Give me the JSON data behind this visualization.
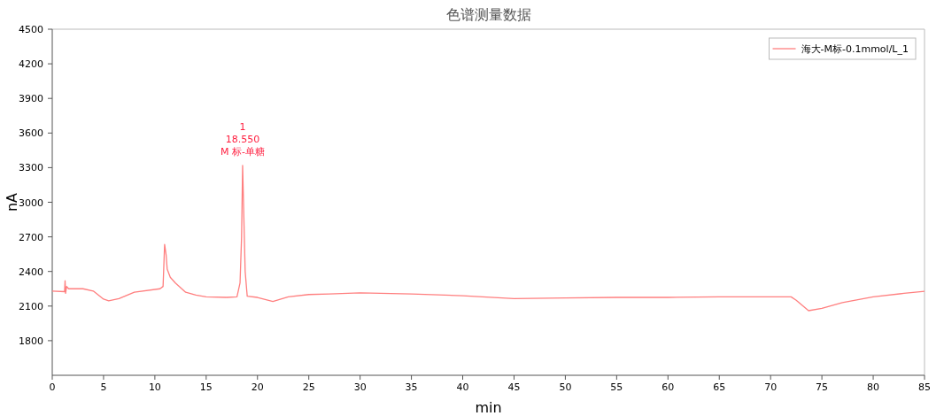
{
  "chart_data": {
    "type": "line",
    "title": "色谱测量数据",
    "xlabel": "min",
    "ylabel": "nA",
    "xlim": [
      0,
      85
    ],
    "xticks": [
      0,
      5,
      10,
      15,
      20,
      25,
      30,
      35,
      40,
      45,
      50,
      55,
      60,
      65,
      70,
      75,
      80,
      85
    ],
    "ylim": [
      1500,
      4500
    ],
    "yticks": [
      1800,
      2100,
      2400,
      2700,
      3000,
      3300,
      3600,
      3900,
      4200,
      4500
    ],
    "grid": false,
    "legend": "top right",
    "marker": "none",
    "line_style": "solid",
    "series": [
      {
        "name": "海大-M标-0.1mmol/L_1",
        "color": "#ff7f7f",
        "x": [
          0,
          1.2,
          1.25,
          1.3,
          1.4,
          1.6,
          3,
          4,
          5,
          5.5,
          6.5,
          8,
          10.5,
          10.8,
          10.95,
          11.1,
          11.2,
          11.5,
          12,
          13,
          14,
          15,
          17,
          18,
          18.3,
          18.45,
          18.55,
          18.65,
          18.8,
          19,
          20,
          21.5,
          23,
          25,
          27,
          30,
          35,
          40,
          45,
          50,
          55,
          60,
          65,
          70,
          72,
          72.5,
          73.7,
          75,
          77,
          80,
          83,
          85
        ],
        "values": [
          2230,
          2225,
          2320,
          2210,
          2270,
          2250,
          2250,
          2230,
          2160,
          2145,
          2165,
          2220,
          2250,
          2270,
          2635,
          2540,
          2420,
          2350,
          2300,
          2220,
          2195,
          2180,
          2175,
          2180,
          2300,
          2700,
          3320,
          2950,
          2400,
          2185,
          2175,
          2140,
          2180,
          2200,
          2205,
          2215,
          2205,
          2190,
          2165,
          2170,
          2175,
          2175,
          2180,
          2180,
          2180,
          2150,
          2060,
          2080,
          2130,
          2180,
          2210,
          2228
        ]
      }
    ],
    "annotations": [
      {
        "text": "1\n18.550\nM 标-单糖",
        "x": 18.55,
        "y": 3320
      }
    ]
  }
}
